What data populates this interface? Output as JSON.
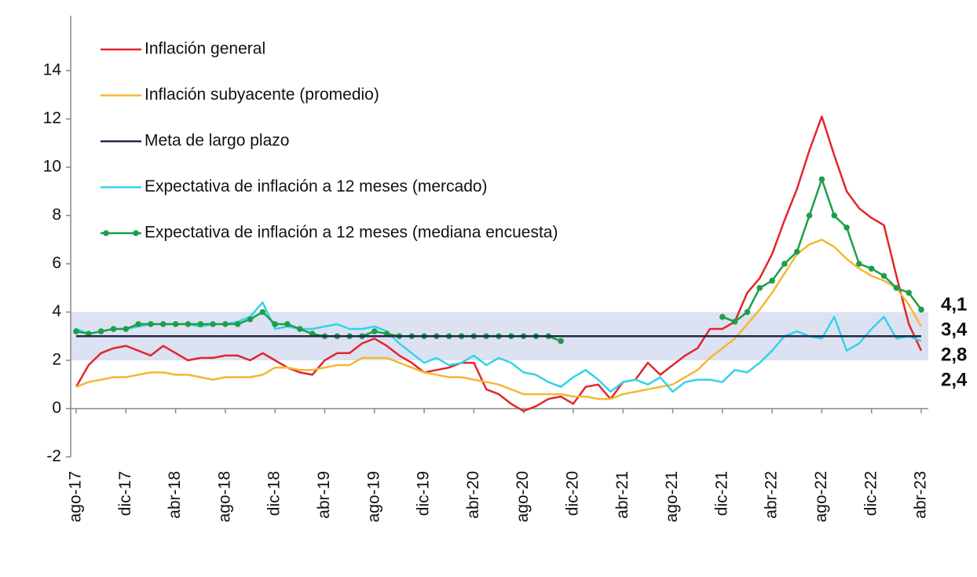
{
  "chart_data": {
    "type": "line",
    "categories": [
      "ago-17",
      null,
      null,
      null,
      "dic-17",
      null,
      null,
      null,
      "abr-18",
      null,
      null,
      null,
      "ago-18",
      null,
      null,
      null,
      "dic-18",
      null,
      null,
      null,
      "abr-19",
      null,
      null,
      null,
      "ago-19",
      null,
      null,
      null,
      "dic-19",
      null,
      null,
      null,
      "abr-20",
      null,
      null,
      null,
      "ago-20",
      null,
      null,
      null,
      "dic-20",
      null,
      null,
      null,
      "abr-21",
      null,
      null,
      null,
      "ago-21",
      null,
      null,
      null,
      "dic-21",
      null,
      null,
      null,
      "abr-22",
      null,
      null,
      null,
      "ago-22",
      null,
      null,
      null,
      "dic-22",
      null,
      null,
      null,
      "abr-23"
    ],
    "series": [
      {
        "name": "Inflación general",
        "color": "#e3262b",
        "values": [
          0.9,
          1.8,
          2.3,
          2.5,
          2.6,
          2.4,
          2.2,
          2.6,
          2.3,
          2.0,
          2.1,
          2.1,
          2.2,
          2.2,
          2.0,
          2.3,
          2.0,
          1.7,
          1.5,
          1.4,
          2.0,
          2.3,
          2.3,
          2.7,
          2.9,
          2.6,
          2.2,
          1.9,
          1.5,
          1.6,
          1.7,
          1.9,
          1.9,
          0.8,
          0.6,
          0.2,
          -0.1,
          0.1,
          0.4,
          0.5,
          0.2,
          0.9,
          1.0,
          0.4,
          1.1,
          1.2,
          1.9,
          1.4,
          1.8,
          2.2,
          2.5,
          3.3,
          3.3,
          3.6,
          4.8,
          5.4,
          6.4,
          7.8,
          9.1,
          10.7,
          12.1,
          10.5,
          9.0,
          8.3,
          7.9,
          7.6,
          5.5,
          3.5,
          2.4
        ],
        "value_labels": [
          null,
          null,
          null,
          null,
          null,
          null,
          null,
          null,
          null,
          null,
          null,
          null,
          null,
          null,
          null,
          null,
          null,
          null,
          null,
          null,
          null,
          null,
          null,
          null,
          null,
          null,
          null,
          null,
          null,
          null,
          null,
          null,
          null,
          null,
          null,
          null,
          null,
          null,
          null,
          null,
          null,
          null,
          null,
          null,
          null,
          null,
          null,
          null,
          null,
          null,
          null,
          null,
          null,
          null,
          null,
          null,
          null,
          null,
          null,
          null,
          null,
          null,
          null,
          null,
          null,
          null,
          null,
          null,
          "2,4"
        ]
      },
      {
        "name": "Inflación subyacente (promedio)",
        "color": "#f4b834",
        "values": [
          0.9,
          1.1,
          1.2,
          1.3,
          1.3,
          1.4,
          1.5,
          1.5,
          1.4,
          1.4,
          1.3,
          1.2,
          1.3,
          1.3,
          1.3,
          1.4,
          1.7,
          1.7,
          1.6,
          1.6,
          1.7,
          1.8,
          1.8,
          2.1,
          2.1,
          2.1,
          1.9,
          1.7,
          1.5,
          1.4,
          1.3,
          1.3,
          1.2,
          1.1,
          1.0,
          0.8,
          0.6,
          0.6,
          0.6,
          0.6,
          0.5,
          0.5,
          0.4,
          0.4,
          0.6,
          0.7,
          0.8,
          0.9,
          1.0,
          1.3,
          1.6,
          2.1,
          2.5,
          2.9,
          3.5,
          4.1,
          4.8,
          5.6,
          6.4,
          6.8,
          7.0,
          6.7,
          6.2,
          5.8,
          5.5,
          5.3,
          5.0,
          4.3,
          3.4
        ],
        "value_labels": [
          null,
          null,
          null,
          null,
          null,
          null,
          null,
          null,
          null,
          null,
          null,
          null,
          null,
          null,
          null,
          null,
          null,
          null,
          null,
          null,
          null,
          null,
          null,
          null,
          null,
          null,
          null,
          null,
          null,
          null,
          null,
          null,
          null,
          null,
          null,
          null,
          null,
          null,
          null,
          null,
          null,
          null,
          null,
          null,
          null,
          null,
          null,
          null,
          null,
          null,
          null,
          null,
          null,
          null,
          null,
          null,
          null,
          null,
          null,
          null,
          null,
          null,
          null,
          null,
          null,
          null,
          null,
          null,
          "3,4"
        ]
      },
      {
        "name": "Meta de largo plazo",
        "color": "#1f2845",
        "values": [
          3,
          3,
          3,
          3,
          3,
          3,
          3,
          3,
          3,
          3,
          3,
          3,
          3,
          3,
          3,
          3,
          3,
          3,
          3,
          3,
          3,
          3,
          3,
          3,
          3,
          3,
          3,
          3,
          3,
          3,
          3,
          3,
          3,
          3,
          3,
          3,
          3,
          3,
          3,
          3,
          3,
          3,
          3,
          3,
          3,
          3,
          3,
          3,
          3,
          3,
          3,
          3,
          3,
          3,
          3,
          3,
          3,
          3,
          3,
          3,
          3,
          3,
          3,
          3,
          3,
          3,
          3,
          3,
          3
        ]
      },
      {
        "name": "Expectativa de inflación a 12 meses (mercado)",
        "color": "#33d3ea",
        "values": [
          3.3,
          3.1,
          3.2,
          3.3,
          3.3,
          3.4,
          3.5,
          3.5,
          3.5,
          3.5,
          3.4,
          3.5,
          3.5,
          3.6,
          3.8,
          4.4,
          3.3,
          3.4,
          3.3,
          3.3,
          3.4,
          3.5,
          3.3,
          3.3,
          3.4,
          3.2,
          2.7,
          2.3,
          1.9,
          2.1,
          1.8,
          1.9,
          2.2,
          1.8,
          2.1,
          1.9,
          1.5,
          1.4,
          1.1,
          0.9,
          1.3,
          1.6,
          1.2,
          0.7,
          1.1,
          1.2,
          1.0,
          1.3,
          0.7,
          1.1,
          1.2,
          1.2,
          1.1,
          1.6,
          1.5,
          1.9,
          2.4,
          3.0,
          3.2,
          3.0,
          2.9,
          3.8,
          2.4,
          2.7,
          3.3,
          3.8,
          2.9,
          3.0,
          2.8
        ],
        "value_labels": [
          null,
          null,
          null,
          null,
          null,
          null,
          null,
          null,
          null,
          null,
          null,
          null,
          null,
          null,
          null,
          null,
          null,
          null,
          null,
          null,
          null,
          null,
          null,
          null,
          null,
          null,
          null,
          null,
          null,
          null,
          null,
          null,
          null,
          null,
          null,
          null,
          null,
          null,
          null,
          null,
          null,
          null,
          null,
          null,
          null,
          null,
          null,
          null,
          null,
          null,
          null,
          null,
          null,
          null,
          null,
          null,
          null,
          null,
          null,
          null,
          null,
          null,
          null,
          null,
          null,
          null,
          null,
          null,
          "2,8"
        ]
      },
      {
        "name": "Expectativa de inflación a 12 meses (mediana encuesta)",
        "color": "#1e9e4a",
        "markers": true,
        "values": [
          3.2,
          3.1,
          3.2,
          3.3,
          3.3,
          3.5,
          3.5,
          3.5,
          3.5,
          3.5,
          3.5,
          3.5,
          3.5,
          3.5,
          3.7,
          4.0,
          3.5,
          3.5,
          3.3,
          3.1,
          3.0,
          3.0,
          3.0,
          3.0,
          3.2,
          3.1,
          3.0,
          3.0,
          3.0,
          3.0,
          3.0,
          3.0,
          3.0,
          3.0,
          3.0,
          3.0,
          3.0,
          3.0,
          3.0,
          2.8,
          null,
          null,
          null,
          null,
          null,
          null,
          null,
          null,
          null,
          null,
          null,
          null,
          3.8,
          3.6,
          4.0,
          5.0,
          5.3,
          6.0,
          6.5,
          8.0,
          9.5,
          8.0,
          7.5,
          6.0,
          5.8,
          5.5,
          5.0,
          4.8,
          4.1
        ],
        "value_labels": [
          null,
          null,
          null,
          null,
          null,
          null,
          null,
          null,
          null,
          null,
          null,
          null,
          null,
          null,
          null,
          null,
          null,
          null,
          null,
          null,
          null,
          null,
          null,
          null,
          null,
          null,
          null,
          null,
          null,
          null,
          null,
          null,
          null,
          null,
          null,
          null,
          null,
          null,
          null,
          null,
          null,
          null,
          null,
          null,
          null,
          null,
          null,
          null,
          null,
          null,
          null,
          null,
          null,
          null,
          null,
          null,
          null,
          null,
          null,
          null,
          null,
          null,
          null,
          null,
          null,
          null,
          null,
          null,
          "4,1"
        ]
      }
    ],
    "target_range": [
      2,
      4
    ],
    "target_color": "#dce2f2",
    "ylim": [
      -2,
      14
    ],
    "yticks": [
      -2,
      0,
      2,
      4,
      6,
      8,
      10,
      12,
      14
    ],
    "legend": "upper left"
  }
}
